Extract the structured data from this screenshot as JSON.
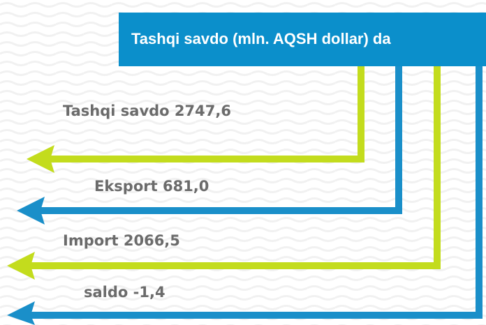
{
  "header": {
    "title": "Tashqi savdo  (mln. AQSH dollar) da"
  },
  "items": [
    {
      "label": "Tashqi savdo 2747,6"
    },
    {
      "label": "Eksport 681,0"
    },
    {
      "label": "Import 2066,5"
    },
    {
      "label": "saldo -1,4"
    }
  ]
}
